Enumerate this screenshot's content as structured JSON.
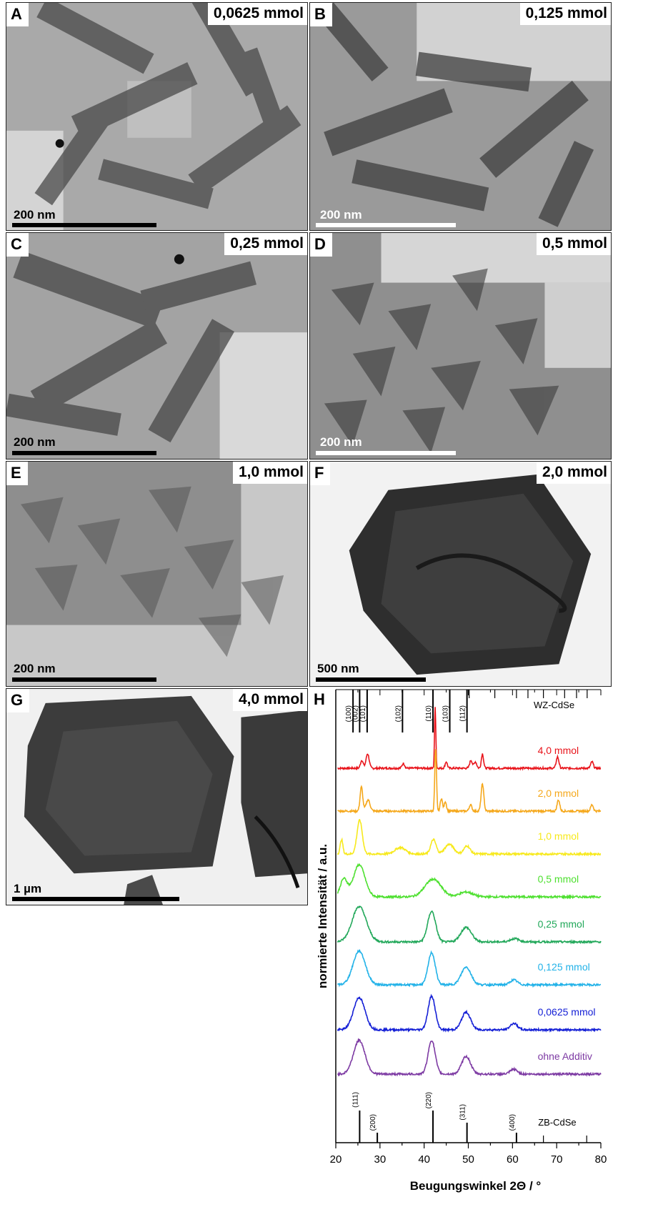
{
  "panels": [
    {
      "letter": "A",
      "concentration": "0,0625 mmol",
      "scale_bar": "200 nm",
      "scale_color": "#000000"
    },
    {
      "letter": "B",
      "concentration": "0,125 mmol",
      "scale_bar": "200 nm",
      "scale_color": "#ffffff"
    },
    {
      "letter": "C",
      "concentration": "0,25 mmol",
      "scale_bar": "200 nm",
      "scale_color": "#000000"
    },
    {
      "letter": "D",
      "concentration": "0,5 mmol",
      "scale_bar": "200 nm",
      "scale_color": "#ffffff"
    },
    {
      "letter": "E",
      "concentration": "1,0 mmol",
      "scale_bar": "200 nm",
      "scale_color": "#000000"
    },
    {
      "letter": "F",
      "concentration": "2,0 mmol",
      "scale_bar": "500 nm",
      "scale_color": "#000000"
    },
    {
      "letter": "G",
      "concentration": "4,0 mmol",
      "scale_bar": "1 µm",
      "scale_color": "#000000"
    }
  ],
  "chart_panel": {
    "letter": "H"
  },
  "chart_data": {
    "type": "line",
    "xlabel": "Beugungswinkel 2Θ / °",
    "ylabel": "normierte Intensität / a.u.",
    "xlim": [
      20,
      80
    ],
    "xticks": [
      20,
      30,
      40,
      50,
      60,
      70,
      80
    ],
    "grid": false,
    "reference_top": {
      "name": "WZ-CdSe",
      "peaks": [
        {
          "x": 23.9,
          "label": "(100)"
        },
        {
          "x": 25.4,
          "label": "(002)"
        },
        {
          "x": 27.1,
          "label": "(101)"
        },
        {
          "x": 35.1,
          "label": "(102)"
        },
        {
          "x": 42.0,
          "label": "(110)"
        },
        {
          "x": 45.8,
          "label": "(103)"
        },
        {
          "x": 49.7,
          "label": "(112)"
        }
      ],
      "minor_peaks": [
        50.2,
        56.0,
        60.9,
        63.5,
        67.0,
        71.8,
        74.5,
        76.9
      ]
    },
    "reference_bottom": {
      "name": "ZB-CdSe",
      "peaks": [
        {
          "x": 25.4,
          "label": "(111)"
        },
        {
          "x": 29.4,
          "label": "(200)"
        },
        {
          "x": 42.0,
          "label": "(220)"
        },
        {
          "x": 49.7,
          "label": "(311)"
        },
        {
          "x": 60.9,
          "label": "(400)"
        }
      ],
      "minor_peaks": [
        67.0,
        76.8
      ]
    },
    "series": [
      {
        "name": "4,0 mmol",
        "color": "#e8141b",
        "peaks": [
          [
            25.9,
            0.25,
            0.3
          ],
          [
            27.2,
            0.45,
            0.35
          ],
          [
            35.3,
            0.15,
            0.3
          ],
          [
            42.5,
            1.9,
            0.15
          ],
          [
            45.0,
            0.2,
            0.25
          ],
          [
            50.6,
            0.25,
            0.3
          ],
          [
            51.6,
            0.2,
            0.3
          ],
          [
            53.2,
            0.45,
            0.25
          ],
          [
            70.2,
            0.35,
            0.3
          ],
          [
            78.0,
            0.2,
            0.3
          ]
        ]
      },
      {
        "name": "2,0 mmol",
        "color": "#f5a81c",
        "peaks": [
          [
            25.8,
            0.75,
            0.3
          ],
          [
            27.3,
            0.35,
            0.45
          ],
          [
            42.6,
            1.9,
            0.2
          ],
          [
            43.9,
            0.4,
            0.25
          ],
          [
            44.8,
            0.3,
            0.25
          ],
          [
            50.5,
            0.2,
            0.3
          ],
          [
            53.2,
            0.85,
            0.3
          ],
          [
            70.4,
            0.35,
            0.3
          ],
          [
            78.0,
            0.2,
            0.3
          ]
        ]
      },
      {
        "name": "1,0 mmol",
        "color": "#f7e91c",
        "peaks": [
          [
            21.3,
            0.45,
            0.3
          ],
          [
            25.4,
            1.05,
            0.6
          ],
          [
            34.6,
            0.2,
            1.2
          ],
          [
            42.1,
            0.45,
            0.6
          ],
          [
            45.7,
            0.3,
            1.0
          ],
          [
            49.7,
            0.25,
            0.7
          ]
        ]
      },
      {
        "name": "0,5 mmol",
        "color": "#4ee030",
        "peaks": [
          [
            21.8,
            0.55,
            0.8
          ],
          [
            25.3,
            1.0,
            1.3
          ],
          [
            42.0,
            0.55,
            1.8
          ],
          [
            49.5,
            0.15,
            1.5
          ]
        ]
      },
      {
        "name": "0,25 mmol",
        "color": "#22a85a",
        "peaks": [
          [
            25.3,
            1.1,
            1.6
          ],
          [
            41.7,
            0.95,
            0.9
          ],
          [
            49.5,
            0.45,
            1.2
          ],
          [
            60.5,
            0.1,
            1.0
          ]
        ]
      },
      {
        "name": "0,125 mmol",
        "color": "#22b2e8",
        "peaks": [
          [
            25.3,
            1.05,
            1.4
          ],
          [
            41.7,
            1.0,
            0.8
          ],
          [
            49.5,
            0.55,
            1.1
          ],
          [
            60.3,
            0.15,
            0.8
          ]
        ]
      },
      {
        "name": "0,0625 mmol",
        "color": "#1520d6",
        "peaks": [
          [
            25.3,
            1.0,
            1.3
          ],
          [
            41.7,
            1.05,
            0.8
          ],
          [
            49.5,
            0.55,
            1.0
          ],
          [
            60.3,
            0.2,
            0.8
          ]
        ]
      },
      {
        "name": "ohne Additiv",
        "color": "#7d3aa3",
        "peaks": [
          [
            25.3,
            1.05,
            1.3
          ],
          [
            41.7,
            1.05,
            0.8
          ],
          [
            49.5,
            0.55,
            1.0
          ],
          [
            60.3,
            0.15,
            0.8
          ]
        ]
      }
    ]
  }
}
